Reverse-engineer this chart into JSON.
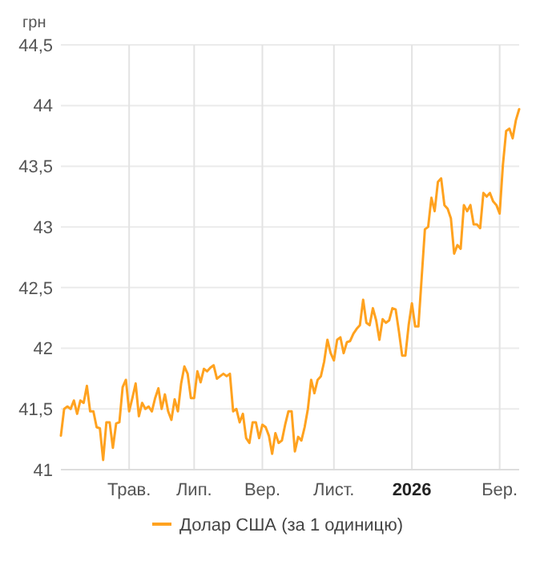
{
  "chart_data": {
    "type": "line",
    "ylabel": "грн",
    "categories": [
      null,
      null,
      null,
      null,
      null,
      null,
      null,
      null,
      null,
      null,
      null,
      null,
      null,
      null,
      null,
      null,
      null,
      null,
      null,
      null,
      null,
      "Трав.",
      null,
      null,
      null,
      null,
      null,
      null,
      null,
      null,
      null,
      null,
      null,
      null,
      null,
      null,
      null,
      null,
      null,
      null,
      null,
      "Лип.",
      null,
      null,
      null,
      null,
      null,
      null,
      null,
      null,
      null,
      null,
      null,
      null,
      null,
      null,
      null,
      null,
      null,
      null,
      null,
      null,
      "Вер.",
      null,
      null,
      null,
      null,
      null,
      null,
      null,
      null,
      null,
      null,
      null,
      null,
      null,
      null,
      null,
      null,
      null,
      null,
      null,
      null,
      null,
      "Лист.",
      null,
      null,
      null,
      null,
      null,
      null,
      null,
      null,
      null,
      null,
      null,
      null,
      null,
      null,
      null,
      null,
      null,
      null,
      null,
      null,
      null,
      null,
      null,
      "2026",
      null,
      null,
      null,
      null,
      null,
      null,
      null,
      null,
      null,
      null,
      null,
      null,
      null,
      null,
      null,
      null,
      null,
      null,
      null,
      null,
      null,
      null,
      null,
      null,
      null,
      null,
      "Бер.",
      null,
      null,
      null,
      null,
      null,
      null
    ],
    "ylim": [
      41,
      44.5
    ],
    "yticks": [
      41,
      {
        "value": 41.5,
        "label": "41,5"
      },
      42,
      {
        "value": 42.5,
        "label": "42,5"
      },
      43,
      {
        "value": 43.5,
        "label": "43,5"
      },
      44,
      {
        "value": 44.5,
        "label": "44,5"
      }
    ],
    "grid": true,
    "legend": "bottom",
    "marker": "none",
    "line_style": "solid",
    "series": [
      {
        "name": "Долар США (за 1 одиницю)",
        "color": "#ffa21f",
        "values": [
          41.28,
          41.5,
          41.52,
          41.5,
          41.57,
          41.46,
          41.57,
          41.55,
          41.69,
          41.48,
          41.48,
          41.35,
          41.34,
          41.08,
          41.39,
          41.39,
          41.18,
          41.38,
          41.39,
          41.68,
          41.74,
          41.48,
          41.59,
          41.71,
          41.44,
          41.55,
          41.5,
          41.52,
          41.48,
          41.59,
          41.67,
          41.5,
          41.62,
          41.48,
          41.41,
          41.58,
          41.48,
          41.71,
          41.85,
          41.79,
          41.59,
          41.59,
          41.81,
          41.72,
          41.83,
          41.81,
          41.84,
          41.86,
          41.75,
          41.77,
          41.79,
          41.77,
          41.79,
          41.48,
          41.5,
          41.39,
          41.46,
          41.26,
          41.22,
          41.39,
          41.39,
          41.26,
          41.37,
          41.35,
          41.28,
          41.13,
          41.3,
          41.22,
          41.24,
          41.37,
          41.48,
          41.48,
          41.15,
          41.27,
          41.24,
          41.35,
          41.5,
          41.74,
          41.63,
          41.74,
          41.77,
          41.89,
          42.07,
          41.96,
          41.9,
          42.07,
          42.09,
          41.96,
          42.05,
          42.06,
          42.12,
          42.16,
          42.19,
          42.4,
          42.21,
          42.19,
          42.33,
          42.23,
          42.07,
          42.24,
          42.21,
          42.23,
          42.33,
          42.32,
          42.14,
          41.94,
          41.94,
          42.19,
          42.37,
          42.18,
          42.18,
          42.58,
          42.98,
          43.0,
          43.24,
          43.13,
          43.37,
          43.4,
          43.18,
          43.15,
          43.07,
          42.78,
          42.85,
          42.82,
          43.18,
          43.13,
          43.18,
          43.02,
          43.02,
          42.99,
          43.28,
          43.25,
          43.28,
          43.21,
          43.18,
          43.11,
          43.51,
          43.79,
          43.81,
          43.73,
          43.88,
          43.97
        ]
      }
    ]
  }
}
